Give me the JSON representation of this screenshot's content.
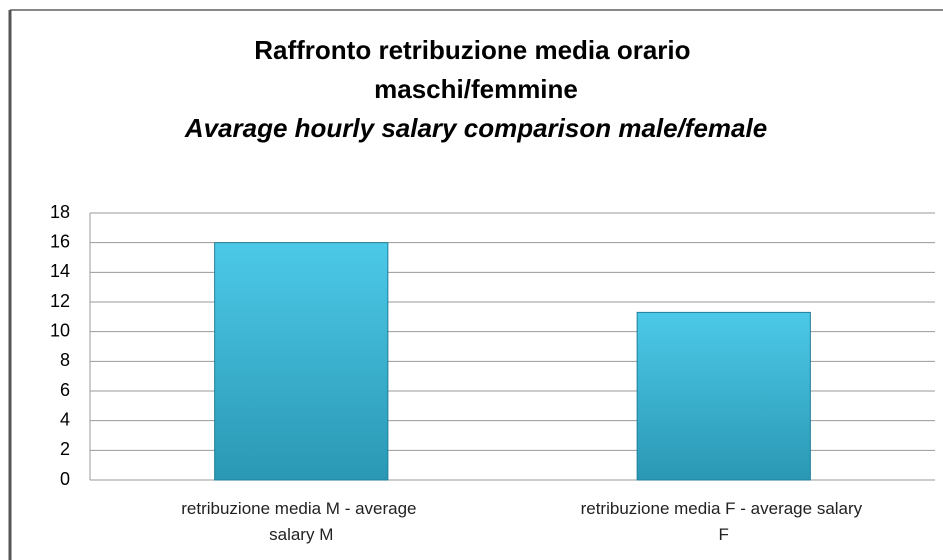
{
  "chart_data": {
    "type": "bar",
    "title": "Raffronto retribuzione media orario maschi/femmine",
    "subtitle": "Avarage hourly salary comparison male/female",
    "categories": [
      "retribuzione media M - average salary M",
      "retribuzione media F - average salary F"
    ],
    "values": [
      16,
      11.3
    ],
    "color": "#3bb8d8",
    "ylim": [
      0,
      18
    ],
    "yticks": [
      0,
      2,
      4,
      6,
      8,
      10,
      12,
      14,
      16,
      18
    ],
    "grid": true
  }
}
